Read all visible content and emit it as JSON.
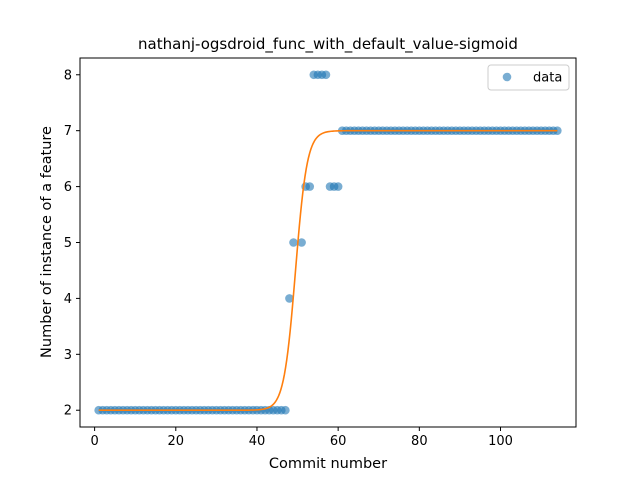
{
  "chart_data": {
    "type": "scatter",
    "title": "nathanj-ogsdroid_func_with_default_value-sigmoid",
    "xlabel": "Commit number",
    "ylabel": "Number of instance of a feature",
    "xlim": [
      -3.6,
      118.6
    ],
    "ylim": [
      1.7,
      8.3
    ],
    "xticks": [
      0,
      20,
      40,
      60,
      80,
      100
    ],
    "yticks": [
      2,
      3,
      4,
      5,
      6,
      7,
      8
    ],
    "grid": false,
    "legend": {
      "placement": "top-right",
      "entries": [
        "data"
      ]
    },
    "colors": {
      "data": "#1f77b4",
      "fit": "#ff7f0e"
    },
    "series": [
      {
        "name": "data",
        "kind": "scatter",
        "x": [
          1,
          2,
          3,
          4,
          5,
          6,
          7,
          8,
          9,
          10,
          11,
          12,
          13,
          14,
          15,
          16,
          17,
          18,
          19,
          20,
          21,
          22,
          23,
          24,
          25,
          26,
          27,
          28,
          29,
          30,
          31,
          32,
          33,
          34,
          35,
          36,
          37,
          38,
          39,
          40,
          41,
          42,
          43,
          44,
          45,
          46,
          47,
          48,
          49,
          51,
          52,
          53,
          54,
          55,
          56,
          57,
          58,
          59,
          60,
          61,
          62,
          63,
          64,
          65,
          66,
          67,
          68,
          69,
          70,
          71,
          72,
          73,
          74,
          75,
          76,
          77,
          78,
          79,
          80,
          81,
          82,
          83,
          84,
          85,
          86,
          87,
          88,
          89,
          90,
          91,
          92,
          93,
          94,
          95,
          96,
          97,
          98,
          99,
          100,
          101,
          102,
          103,
          104,
          105,
          106,
          107,
          108,
          109,
          110,
          111,
          112,
          113,
          114
        ],
        "y": [
          2,
          2,
          2,
          2,
          2,
          2,
          2,
          2,
          2,
          2,
          2,
          2,
          2,
          2,
          2,
          2,
          2,
          2,
          2,
          2,
          2,
          2,
          2,
          2,
          2,
          2,
          2,
          2,
          2,
          2,
          2,
          2,
          2,
          2,
          2,
          2,
          2,
          2,
          2,
          2,
          2,
          2,
          2,
          2,
          2,
          2,
          2,
          4,
          5,
          5,
          6,
          6,
          8,
          8,
          8,
          8,
          6,
          6,
          6,
          7,
          7,
          7,
          7,
          7,
          7,
          7,
          7,
          7,
          7,
          7,
          7,
          7,
          7,
          7,
          7,
          7,
          7,
          7,
          7,
          7,
          7,
          7,
          7,
          7,
          7,
          7,
          7,
          7,
          7,
          7,
          7,
          7,
          7,
          7,
          7,
          7,
          7,
          7,
          7,
          7,
          7,
          7,
          7,
          7,
          7,
          7,
          7,
          7,
          7,
          7,
          7,
          7,
          7
        ]
      },
      {
        "kind": "line",
        "function": "sigmoid",
        "params": {
          "L": 5.0,
          "k": 0.7,
          "x0": 49.5,
          "b": 2.0
        },
        "x_range": [
          1,
          114
        ]
      }
    ]
  }
}
